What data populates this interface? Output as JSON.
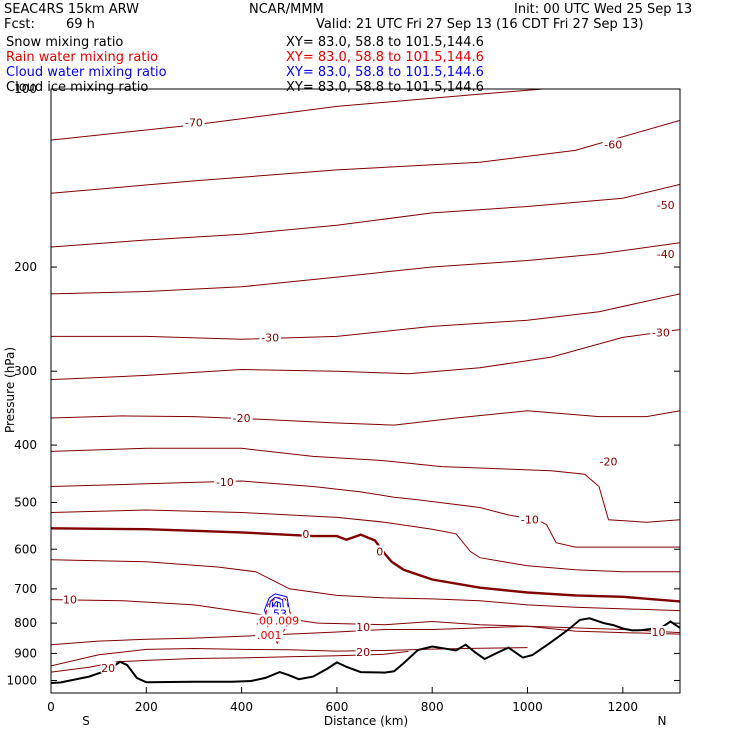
{
  "header": {
    "model": "SEAC4RS 15km ARW",
    "org": "NCAR/MMM",
    "init": "Init: 00 UTC Wed 25 Sep 13",
    "fcst_label": "Fcst:",
    "fcst_value": "69 h",
    "valid": "Valid: 21 UTC Fri 27 Sep 13 (16 CDT Fri 27 Sep 13)"
  },
  "fields": [
    {
      "name": "Snow mixing ratio",
      "xy": "XY=  83.0, 58.8 to 101.5,144.6",
      "color": "#000000"
    },
    {
      "name": "Rain water mixing ratio",
      "xy": "XY=  83.0, 58.8 to 101.5,144.6",
      "color": "#e00000"
    },
    {
      "name": "Cloud water mixing ratio",
      "xy": "XY=  83.0, 58.8 to 101.5,144.6",
      "color": "#0000e0"
    },
    {
      "name": "Cloud ice mixing ratio",
      "xy": "XY=  83.0, 58.8 to 101.5,144.6",
      "color": "#000000"
    }
  ],
  "chart_data": {
    "type": "line",
    "title": "",
    "xlabel": "Distance (km)",
    "ylabel": "Pressure (hPa)",
    "xlim": [
      0,
      1320
    ],
    "ylim": [
      1050,
      100
    ],
    "y_scale": "log",
    "x_ticks": [
      0,
      200,
      400,
      600,
      800,
      1000,
      1200
    ],
    "y_ticks": [
      100,
      200,
      300,
      400,
      500,
      600,
      700,
      800,
      900,
      1000
    ],
    "end_labels": {
      "left": "S",
      "right": "N"
    },
    "temperature_color": "#800000",
    "isotherms": [
      {
        "label": "-70",
        "points": [
          [
            0,
            122
          ],
          [
            300,
            115
          ],
          [
            600,
            107
          ],
          [
            900,
            102
          ],
          [
            1100,
            99
          ],
          [
            1320,
            95
          ]
        ]
      },
      {
        "label": "-60",
        "points": [
          [
            0,
            150
          ],
          [
            300,
            143
          ],
          [
            600,
            137
          ],
          [
            900,
            133
          ],
          [
            1100,
            127
          ],
          [
            1320,
            113
          ]
        ]
      },
      {
        "label": "-50",
        "points": [
          [
            0,
            185
          ],
          [
            200,
            180
          ],
          [
            400,
            176
          ],
          [
            600,
            170
          ],
          [
            800,
            162
          ],
          [
            1000,
            158
          ],
          [
            1200,
            153
          ],
          [
            1320,
            145
          ]
        ]
      },
      {
        "label": "-40",
        "points": [
          [
            0,
            222
          ],
          [
            200,
            220
          ],
          [
            400,
            216
          ],
          [
            600,
            208
          ],
          [
            800,
            200
          ],
          [
            1000,
            195
          ],
          [
            1150,
            190
          ],
          [
            1320,
            182
          ]
        ]
      },
      {
        "label": "-30",
        "points": [
          [
            0,
            262
          ],
          [
            200,
            262
          ],
          [
            400,
            265
          ],
          [
            600,
            262
          ],
          [
            800,
            252
          ],
          [
            1000,
            246
          ],
          [
            1150,
            238
          ],
          [
            1320,
            222
          ]
        ]
      },
      {
        "label": "-30",
        "points": [
          [
            0,
            310
          ],
          [
            200,
            305
          ],
          [
            400,
            298
          ],
          [
            600,
            300
          ],
          [
            750,
            303
          ],
          [
            900,
            296
          ],
          [
            1050,
            284
          ],
          [
            1200,
            263
          ],
          [
            1320,
            255
          ]
        ]
      },
      {
        "label": "-20",
        "points": [
          [
            0,
            360
          ],
          [
            150,
            357
          ],
          [
            300,
            358
          ],
          [
            450,
            362
          ],
          [
            600,
            367
          ],
          [
            720,
            370
          ],
          [
            850,
            360
          ],
          [
            1000,
            350
          ],
          [
            1150,
            358
          ],
          [
            1250,
            358
          ],
          [
            1320,
            350
          ]
        ]
      },
      {
        "label": "-20",
        "points": [
          [
            0,
            410
          ],
          [
            200,
            405
          ],
          [
            400,
            405
          ],
          [
            550,
            418
          ],
          [
            700,
            425
          ],
          [
            820,
            435
          ],
          [
            920,
            438
          ],
          [
            1050,
            442
          ],
          [
            1120,
            448
          ],
          [
            1150,
            470
          ],
          [
            1170,
            535
          ],
          [
            1250,
            540
          ],
          [
            1320,
            535
          ]
        ]
      },
      {
        "label": "-10",
        "points": [
          [
            0,
            470
          ],
          [
            200,
            465
          ],
          [
            400,
            460
          ],
          [
            550,
            470
          ],
          [
            650,
            480
          ],
          [
            720,
            490
          ],
          [
            770,
            495
          ],
          [
            900,
            510
          ],
          [
            960,
            525
          ],
          [
            1020,
            535
          ],
          [
            1040,
            545
          ],
          [
            1060,
            585
          ],
          [
            1100,
            595
          ],
          [
            1200,
            595
          ],
          [
            1320,
            595
          ]
        ]
      },
      {
        "label": "-10",
        "points": [
          [
            0,
            520
          ],
          [
            200,
            515
          ],
          [
            400,
            520
          ],
          [
            600,
            530
          ],
          [
            700,
            540
          ],
          [
            800,
            555
          ],
          [
            850,
            565
          ],
          [
            880,
            605
          ],
          [
            900,
            620
          ],
          [
            950,
            630
          ],
          [
            1000,
            640
          ],
          [
            1100,
            650
          ],
          [
            1200,
            655
          ],
          [
            1320,
            655
          ]
        ]
      },
      {
        "label": "0",
        "emphasis": true,
        "points": [
          [
            0,
            553
          ],
          [
            200,
            555
          ],
          [
            400,
            562
          ],
          [
            550,
            570
          ],
          [
            600,
            570
          ],
          [
            620,
            578
          ],
          [
            650,
            567
          ],
          [
            680,
            580
          ],
          [
            700,
            610
          ],
          [
            715,
            630
          ],
          [
            740,
            650
          ],
          [
            800,
            675
          ],
          [
            900,
            697
          ],
          [
            1000,
            710
          ],
          [
            1100,
            718
          ],
          [
            1200,
            722
          ],
          [
            1320,
            735
          ]
        ]
      },
      {
        "label": "",
        "points": [
          [
            0,
            625
          ],
          [
            200,
            630
          ],
          [
            350,
            643
          ],
          [
            430,
            655
          ],
          [
            470,
            680
          ],
          [
            500,
            700
          ],
          [
            600,
            718
          ],
          [
            700,
            725
          ],
          [
            800,
            728
          ],
          [
            900,
            733
          ],
          [
            1000,
            745
          ],
          [
            1100,
            752
          ],
          [
            1320,
            762
          ]
        ]
      },
      {
        "label": "10",
        "points": [
          [
            0,
            730
          ],
          [
            150,
            733
          ],
          [
            300,
            745
          ],
          [
            400,
            765
          ],
          [
            480,
            783
          ],
          [
            560,
            800
          ],
          [
            700,
            805
          ],
          [
            800,
            795
          ],
          [
            900,
            805
          ],
          [
            1000,
            810
          ],
          [
            1100,
            815
          ],
          [
            1200,
            820
          ],
          [
            1320,
            830
          ]
        ]
      },
      {
        "label": "10",
        "points": [
          [
            0,
            870
          ],
          [
            100,
            858
          ],
          [
            200,
            852
          ],
          [
            300,
            848
          ],
          [
            400,
            842
          ],
          [
            500,
            835
          ],
          [
            600,
            828
          ],
          [
            700,
            820
          ],
          [
            800,
            820
          ],
          [
            900,
            815
          ],
          [
            1000,
            810
          ],
          [
            1100,
            825
          ],
          [
            1200,
            830
          ],
          [
            1320,
            835
          ]
        ]
      },
      {
        "label": "20",
        "points": [
          [
            0,
            945
          ],
          [
            100,
            905
          ],
          [
            200,
            886
          ],
          [
            300,
            883
          ],
          [
            400,
            886
          ],
          [
            500,
            887
          ],
          [
            600,
            892
          ],
          [
            700,
            890
          ],
          [
            800,
            885
          ],
          [
            900,
            882
          ],
          [
            1000,
            880
          ]
        ]
      },
      {
        "label": "20",
        "points": [
          [
            0,
            968
          ],
          [
            80,
            950
          ],
          [
            140,
            930
          ],
          [
            200,
            925
          ],
          [
            300,
            918
          ],
          [
            400,
            916
          ],
          [
            500,
            912
          ],
          [
            600,
            908
          ],
          [
            700,
            903
          ],
          [
            750,
            893
          ]
        ]
      }
    ],
    "terrain_color": "#000000",
    "terrain": [
      [
        0,
        1010
      ],
      [
        20,
        1008
      ],
      [
        40,
        1000
      ],
      [
        80,
        985
      ],
      [
        120,
        960
      ],
      [
        145,
        930
      ],
      [
        160,
        942
      ],
      [
        180,
        990
      ],
      [
        200,
        1007
      ],
      [
        300,
        1005
      ],
      [
        380,
        1005
      ],
      [
        420,
        1002
      ],
      [
        450,
        990
      ],
      [
        480,
        968
      ],
      [
        500,
        980
      ],
      [
        520,
        995
      ],
      [
        550,
        985
      ],
      [
        580,
        955
      ],
      [
        600,
        932
      ],
      [
        620,
        948
      ],
      [
        650,
        968
      ],
      [
        700,
        970
      ],
      [
        720,
        965
      ],
      [
        740,
        935
      ],
      [
        770,
        888
      ],
      [
        800,
        876
      ],
      [
        830,
        884
      ],
      [
        850,
        890
      ],
      [
        870,
        870
      ],
      [
        890,
        896
      ],
      [
        910,
        920
      ],
      [
        940,
        895
      ],
      [
        960,
        880
      ],
      [
        990,
        915
      ],
      [
        1010,
        906
      ],
      [
        1040,
        872
      ],
      [
        1070,
        838
      ],
      [
        1090,
        815
      ],
      [
        1110,
        790
      ],
      [
        1130,
        785
      ],
      [
        1160,
        800
      ],
      [
        1180,
        806
      ],
      [
        1200,
        817
      ],
      [
        1220,
        823
      ],
      [
        1240,
        822
      ],
      [
        1260,
        818
      ],
      [
        1280,
        815
      ],
      [
        1300,
        795
      ],
      [
        1320,
        815
      ]
    ],
    "cloud_water": {
      "color": "#0000e0",
      "max_label": "H",
      "max_value": ".53",
      "contours": [
        [
          [
            470,
            714
          ],
          [
            495,
            722
          ],
          [
            500,
            760
          ],
          [
            495,
            790
          ],
          [
            470,
            800
          ],
          [
            455,
            790
          ],
          [
            448,
            760
          ],
          [
            458,
            725
          ],
          [
            470,
            714
          ]
        ],
        [
          [
            470,
            723
          ],
          [
            486,
            730
          ],
          [
            488,
            760
          ],
          [
            482,
            784
          ],
          [
            466,
            790
          ],
          [
            458,
            765
          ],
          [
            460,
            735
          ],
          [
            470,
            723
          ]
        ],
        [
          [
            473,
            735
          ],
          [
            481,
            740
          ],
          [
            482,
            760
          ],
          [
            476,
            775
          ],
          [
            466,
            772
          ],
          [
            465,
            750
          ],
          [
            473,
            735
          ]
        ]
      ]
    },
    "rain_water": {
      "color": "#e00000",
      "labels": [
        ".001",
        ".009",
        ".001"
      ],
      "contours": [
        [
          [
            473,
            724
          ],
          [
            492,
            728
          ],
          [
            505,
            780
          ],
          [
            490,
            820
          ],
          [
            475,
            865
          ],
          [
            462,
            830
          ],
          [
            448,
            790
          ],
          [
            455,
            745
          ],
          [
            473,
            724
          ]
        ]
      ]
    },
    "contour_labels": [
      {
        "text": "-70",
        "x": 300,
        "p": 114,
        "series": "temperature"
      },
      {
        "text": "-60",
        "x": 1180,
        "p": 124,
        "series": "temperature"
      },
      {
        "text": "-50",
        "x": 1290,
        "p": 157,
        "series": "temperature"
      },
      {
        "text": "-40",
        "x": 1290,
        "p": 190,
        "series": "temperature"
      },
      {
        "text": "-30",
        "x": 460,
        "p": 263,
        "series": "temperature"
      },
      {
        "text": "-30",
        "x": 1280,
        "p": 258,
        "series": "temperature"
      },
      {
        "text": "-20",
        "x": 400,
        "p": 360,
        "series": "temperature"
      },
      {
        "text": "-20",
        "x": 1170,
        "p": 426,
        "series": "temperature"
      },
      {
        "text": "-10",
        "x": 365,
        "p": 462,
        "series": "temperature"
      },
      {
        "text": "-10",
        "x": 1005,
        "p": 534,
        "series": "temperature"
      },
      {
        "text": "0",
        "x": 535,
        "p": 565,
        "series": "temperature"
      },
      {
        "text": "0",
        "x": 690,
        "p": 605,
        "series": "temperature"
      },
      {
        "text": "10",
        "x": 40,
        "p": 730,
        "series": "temperature"
      },
      {
        "text": "10",
        "x": 655,
        "p": 812,
        "series": "temperature"
      },
      {
        "text": "20",
        "x": 655,
        "p": 895,
        "series": "temperature"
      },
      {
        "text": "20",
        "x": 120,
        "p": 952,
        "series": "temperature"
      },
      {
        "text": "10",
        "x": 1275,
        "p": 828,
        "series": "temperature"
      },
      {
        "text": ".53",
        "x": 477,
        "p": 770,
        "series": "cloud"
      },
      {
        "text": ".001",
        "x": 455,
        "p": 792,
        "series": "rain"
      },
      {
        "text": ".009",
        "x": 495,
        "p": 792,
        "series": "rain"
      },
      {
        "text": ".001",
        "x": 458,
        "p": 838,
        "series": "rain"
      }
    ]
  }
}
